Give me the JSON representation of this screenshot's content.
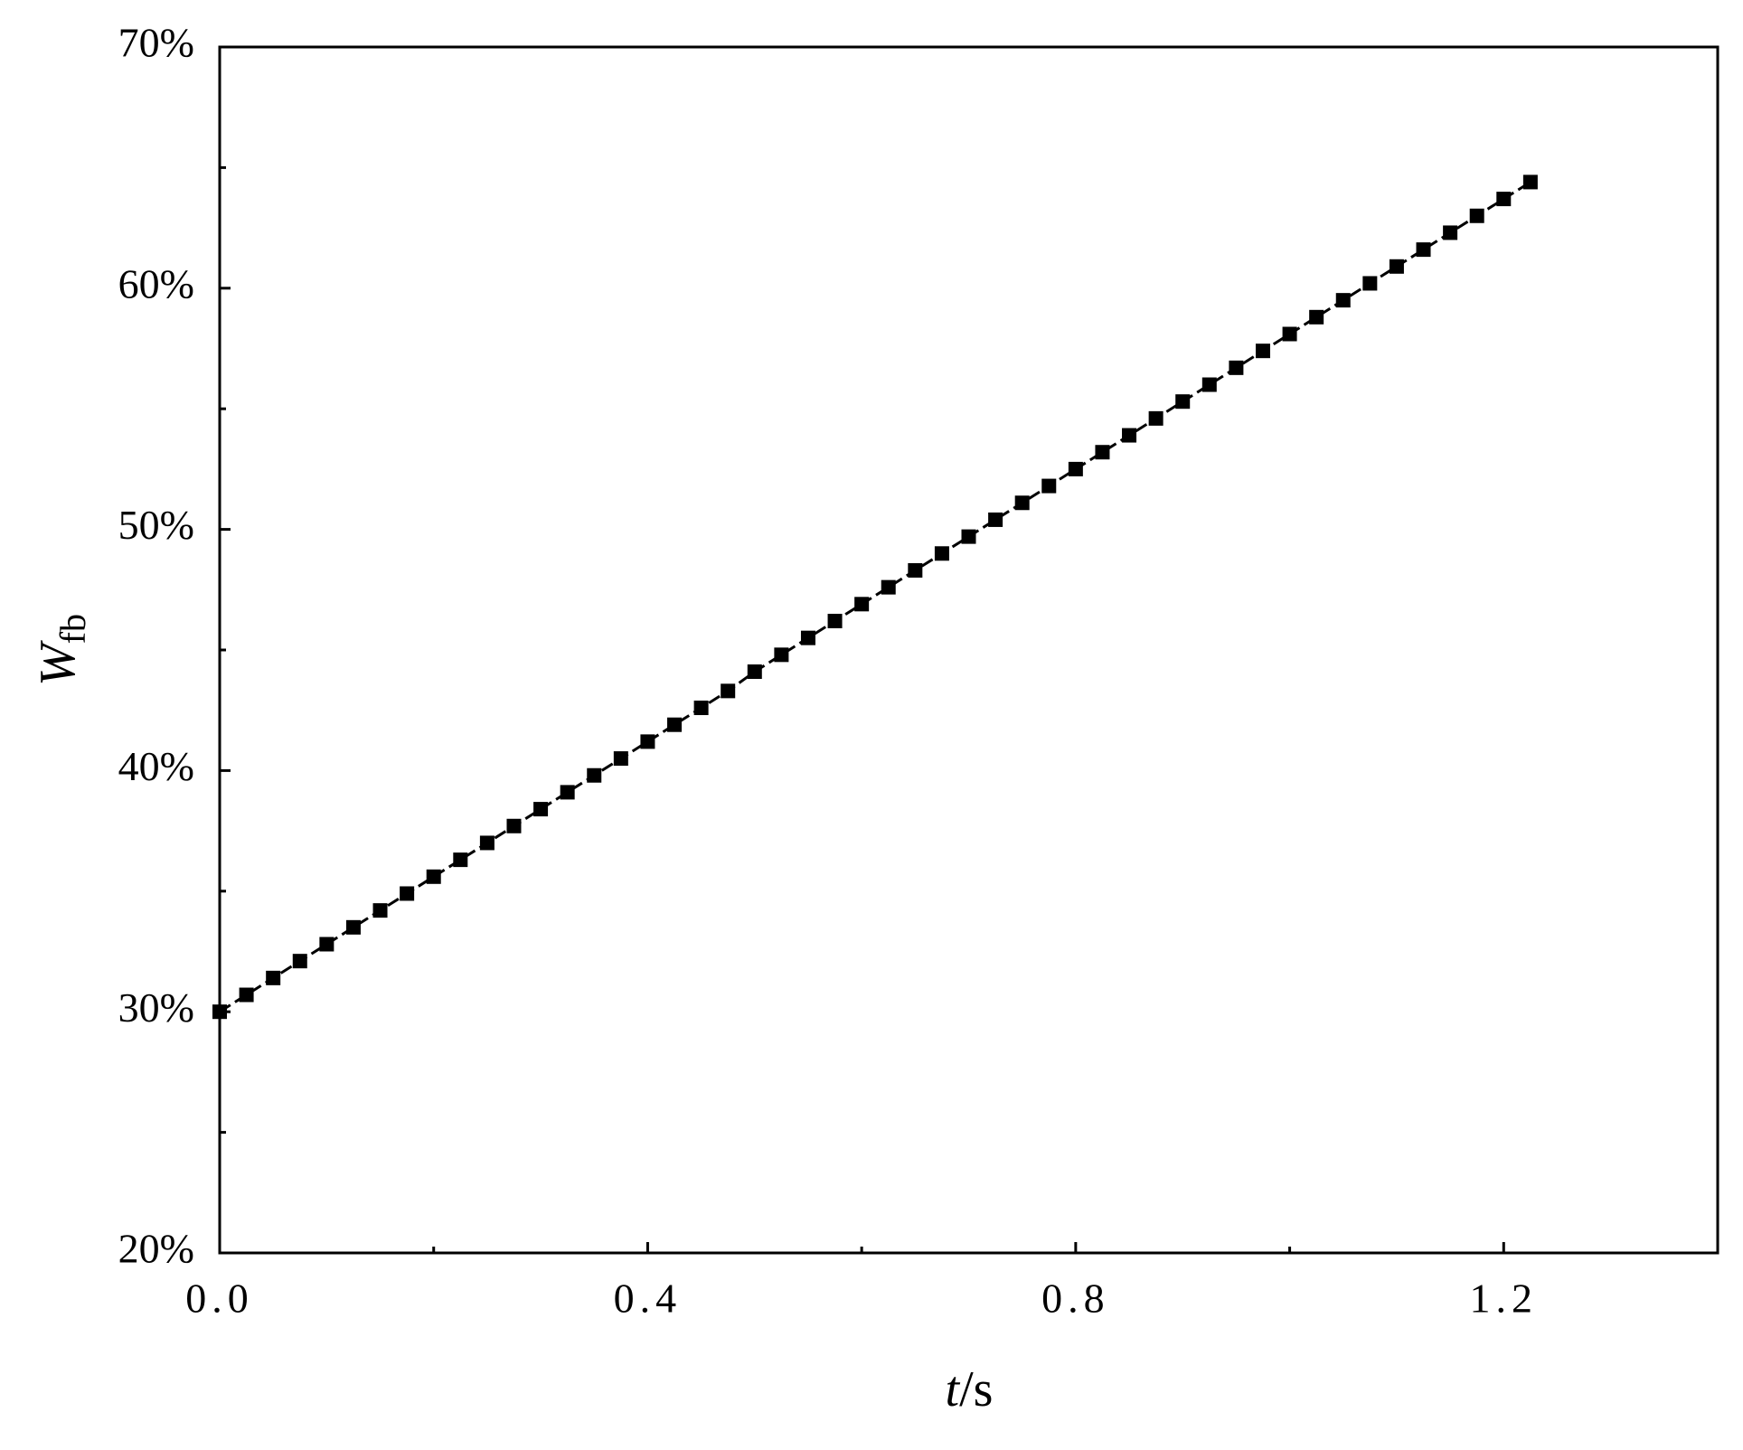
{
  "chart_data": {
    "type": "line",
    "xlabel": {
      "var": "t",
      "unit": "/s"
    },
    "ylabel": {
      "var": "W",
      "sub": "fb"
    },
    "x": [
      0,
      0.025,
      0.05,
      0.075,
      0.1,
      0.125,
      0.15,
      0.175,
      0.2,
      0.225,
      0.25,
      0.275,
      0.3,
      0.325,
      0.35,
      0.375,
      0.4,
      0.425,
      0.45,
      0.475,
      0.5,
      0.525,
      0.55,
      0.575,
      0.6,
      0.625,
      0.65,
      0.675,
      0.7,
      0.725,
      0.75,
      0.775,
      0.8,
      0.825,
      0.85,
      0.875,
      0.9,
      0.925,
      0.95,
      0.975,
      1.0,
      1.025,
      1.05,
      1.075,
      1.1,
      1.125,
      1.15,
      1.175,
      1.2,
      1.225
    ],
    "series": [
      {
        "color": "#000000",
        "marker": "square",
        "line": "dashed",
        "values": [
          30.0,
          30.7,
          31.4,
          32.1,
          32.8,
          33.5,
          34.2,
          34.9,
          35.6,
          36.3,
          37.0,
          37.7,
          38.4,
          39.1,
          39.8,
          40.5,
          41.2,
          41.9,
          42.6,
          43.3,
          44.1,
          44.8,
          45.5,
          46.2,
          46.9,
          47.6,
          48.3,
          49.0,
          49.7,
          50.4,
          51.1,
          51.8,
          52.5,
          53.2,
          53.9,
          54.6,
          55.3,
          56.0,
          56.7,
          57.4,
          58.1,
          58.8,
          59.5,
          60.2,
          60.9,
          61.6,
          62.3,
          63.0,
          63.7,
          64.4
        ]
      }
    ],
    "xlim": [
      0,
      1.4
    ],
    "xticks": [
      {
        "value": 0,
        "label": "0.0"
      },
      0.4,
      0.8,
      1.2
    ],
    "xminorticks": [
      0.2,
      0.6,
      1.0
    ],
    "ylim": [
      20,
      70
    ],
    "yticks": [
      {
        "value": 20,
        "label": "20%"
      },
      {
        "value": 30,
        "label": "30%"
      },
      {
        "value": 40,
        "label": "40%"
      },
      {
        "value": 50,
        "label": "50%"
      },
      {
        "value": 60,
        "label": "60%"
      },
      {
        "value": 70,
        "label": "70%"
      }
    ],
    "yminorticks": [
      25,
      35,
      45,
      55,
      65
    ],
    "grid": false
  }
}
